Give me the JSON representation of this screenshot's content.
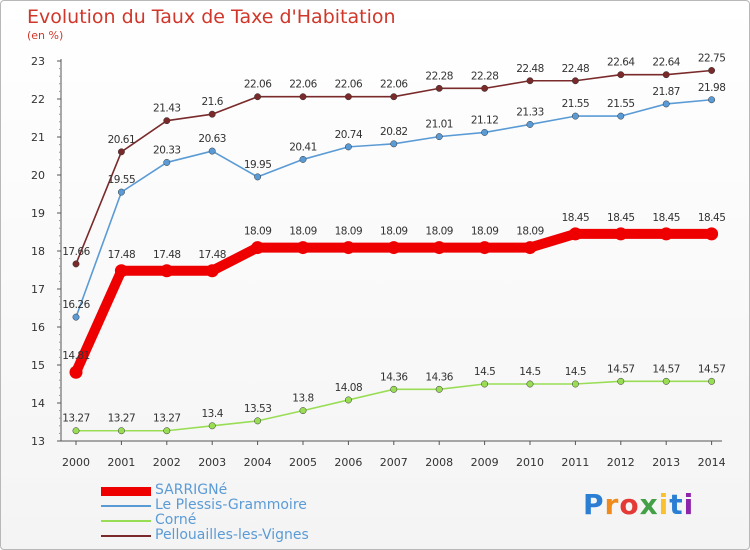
{
  "chart_data": {
    "type": "line",
    "title": "Evolution du Taux de Taxe d'Habitation",
    "ylabel": "(en %)",
    "x": [
      "2000",
      "2001",
      "2002",
      "2003",
      "2004",
      "2005",
      "2006",
      "2007",
      "2008",
      "2009",
      "2010",
      "2011",
      "2012",
      "2013",
      "2014"
    ],
    "ylim": [
      13,
      23
    ],
    "yticks": [
      "13",
      "14",
      "15",
      "16",
      "17",
      "18",
      "19",
      "20",
      "21",
      "22",
      "23"
    ],
    "grid": false,
    "legend_position": "bottom-left",
    "series": [
      {
        "name": "SARRIGNé",
        "color": "#ee0000",
        "values": [
          14.81,
          17.48,
          17.48,
          17.48,
          18.09,
          18.09,
          18.09,
          18.09,
          18.09,
          18.09,
          18.09,
          18.45,
          18.45,
          18.45,
          18.45
        ],
        "labels": [
          "14.81",
          "17.48",
          "17.48",
          "17.48",
          "18.09",
          "18.09",
          "18.09",
          "18.09",
          "18.09",
          "18.09",
          "18.09",
          "18.45",
          "18.45",
          "18.45",
          "18.45"
        ]
      },
      {
        "name": "Le Plessis-Grammoire",
        "color": "#5b9bd5",
        "values": [
          16.26,
          19.55,
          20.33,
          20.63,
          19.95,
          20.41,
          20.74,
          20.82,
          21.01,
          21.12,
          21.33,
          21.55,
          21.55,
          21.87,
          21.98
        ],
        "labels": [
          "16.26",
          "19.55",
          "20.33",
          "20.63",
          "19.95",
          "20.41",
          "20.74",
          "20.82",
          "21.01",
          "21.12",
          "21.33",
          "21.55",
          "21.55",
          "21.87",
          "21.98"
        ]
      },
      {
        "name": "Corné",
        "color": "#99dd55",
        "values": [
          13.27,
          13.27,
          13.27,
          13.4,
          13.53,
          13.8,
          14.08,
          14.36,
          14.36,
          14.5,
          14.5,
          14.5,
          14.57,
          14.57,
          14.57
        ],
        "labels": [
          "13.27",
          "13.27",
          "13.27",
          "13.4",
          "13.53",
          "13.8",
          "14.08",
          "14.36",
          "14.36",
          "14.5",
          "14.5",
          "14.5",
          "14.57",
          "14.57",
          "14.57"
        ]
      },
      {
        "name": "Pellouailles-les-Vignes",
        "color": "#7a2a2a",
        "values": [
          17.66,
          20.61,
          21.43,
          21.6,
          22.06,
          22.06,
          22.06,
          22.06,
          22.28,
          22.28,
          22.48,
          22.48,
          22.64,
          22.64,
          22.75
        ],
        "labels": [
          "17.66",
          "20.61",
          "21.43",
          "21.6",
          "22.06",
          "22.06",
          "22.06",
          "22.06",
          "22.28",
          "22.28",
          "22.48",
          "22.48",
          "22.64",
          "22.64",
          "22.75"
        ]
      }
    ]
  },
  "logo": {
    "letters": [
      "P",
      "r",
      "o",
      "x",
      "i",
      "t",
      "i"
    ],
    "colors": [
      "#2a7fd4",
      "#f08a1c",
      "#e53935",
      "#43a047",
      "#fbc02d",
      "#2a7fd4",
      "#8e24aa"
    ]
  }
}
